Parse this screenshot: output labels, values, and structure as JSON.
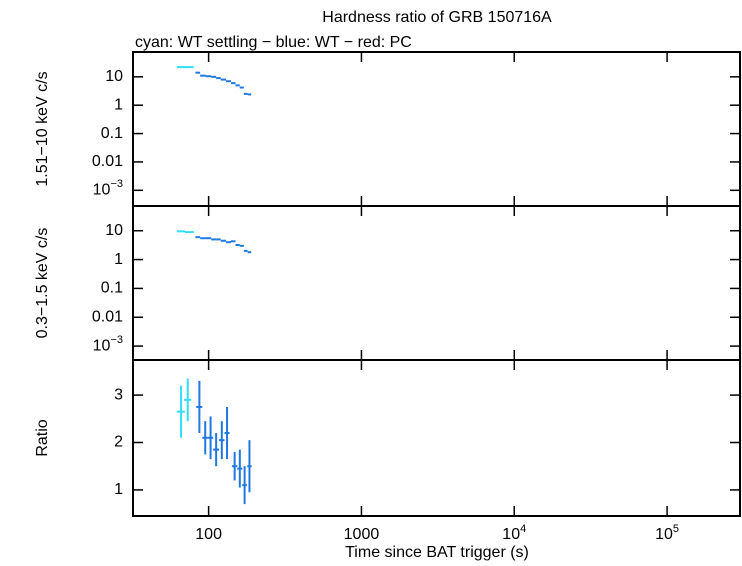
{
  "chart_data": [
    {
      "type": "errorbar",
      "title": "Hardness ratio of GRB 150716A",
      "subtitle": "cyan: WT settling − blue: WT − red: PC",
      "ylabel": "1.51−10 keV c/s",
      "yscale": "log",
      "ylim": [
        0.00028,
        75
      ],
      "yticks": [
        10,
        1,
        0.1,
        0.01,
        {
          "value": 0.001,
          "label": "10",
          "sup": "−3"
        }
      ],
      "xscale": "log",
      "xlim": [
        32,
        300000
      ],
      "xticks": [
        100,
        1000,
        10000,
        100000
      ],
      "series": [
        {
          "name": "WT settling",
          "color": "#33ddff",
          "x": [
            66,
            75
          ],
          "xerr": [
            4,
            5
          ],
          "values": [
            22,
            22
          ]
        },
        {
          "name": "WT",
          "color": "#1f78e0",
          "x": [
            85,
            92,
            100,
            108,
            116,
            125,
            135,
            145,
            155,
            165,
            175,
            185
          ],
          "xerr": [
            3,
            4,
            4,
            4,
            4,
            5,
            5,
            5,
            5,
            5,
            5,
            5
          ],
          "values": [
            14,
            11,
            10.5,
            10,
            9,
            8,
            7,
            6,
            5,
            4.2,
            2.5,
            2.4
          ]
        }
      ]
    },
    {
      "type": "errorbar",
      "ylabel": "0.3−1.5 keV c/s",
      "yscale": "log",
      "ylim": [
        0.00033,
        72
      ],
      "yticks": [
        10,
        1,
        0.1,
        0.01,
        {
          "value": 0.001,
          "label": "10",
          "sup": "−3"
        }
      ],
      "xscale": "log",
      "xlim": [
        32,
        300000
      ],
      "xticks": [
        100,
        1000,
        10000,
        100000
      ],
      "series": [
        {
          "name": "WT settling",
          "color": "#33ddff",
          "x": [
            66,
            75
          ],
          "xerr": [
            4,
            5
          ],
          "values": [
            9.5,
            9
          ]
        },
        {
          "name": "WT",
          "color": "#1f78e0",
          "x": [
            85,
            92,
            100,
            108,
            116,
            125,
            135,
            145,
            155,
            165,
            175,
            185
          ],
          "xerr": [
            3,
            4,
            4,
            4,
            4,
            5,
            5,
            5,
            5,
            5,
            5,
            5
          ],
          "values": [
            6,
            5.5,
            5.5,
            5,
            5,
            4.5,
            4,
            4.3,
            3.2,
            3,
            2,
            1.8
          ]
        }
      ]
    },
    {
      "type": "errorbar",
      "ylabel": "Ratio",
      "xlabel": "Time since BAT trigger (s)",
      "yscale": "linear",
      "ylim": [
        0.45,
        3.74
      ],
      "yticks": [
        1,
        2,
        3
      ],
      "xscale": "log",
      "xlim": [
        32,
        300000
      ],
      "xticks": [
        100,
        1000,
        {
          "value": 10000,
          "label": "10",
          "sup": "4"
        },
        {
          "value": 100000,
          "label": "10",
          "sup": "5"
        }
      ],
      "series": [
        {
          "name": "WT settling",
          "color": "#33ddff",
          "x": [
            66,
            73
          ],
          "xerr": [
            4,
            4
          ],
          "values": [
            2.65,
            2.9
          ],
          "yerr": [
            0.55,
            0.45
          ]
        },
        {
          "name": "WT",
          "color": "#1f78e0",
          "x": [
            87,
            95,
            103,
            112,
            122,
            132,
            148,
            160,
            172,
            185
          ],
          "xerr": [
            4,
            4,
            4,
            5,
            5,
            5,
            6,
            6,
            6,
            6
          ],
          "values": [
            2.75,
            2.1,
            2.1,
            1.85,
            2.05,
            2.2,
            1.5,
            1.45,
            1.1,
            1.5
          ],
          "yerr": [
            0.55,
            0.35,
            0.45,
            0.35,
            0.4,
            0.55,
            0.3,
            0.4,
            0.4,
            0.55
          ]
        }
      ]
    }
  ]
}
